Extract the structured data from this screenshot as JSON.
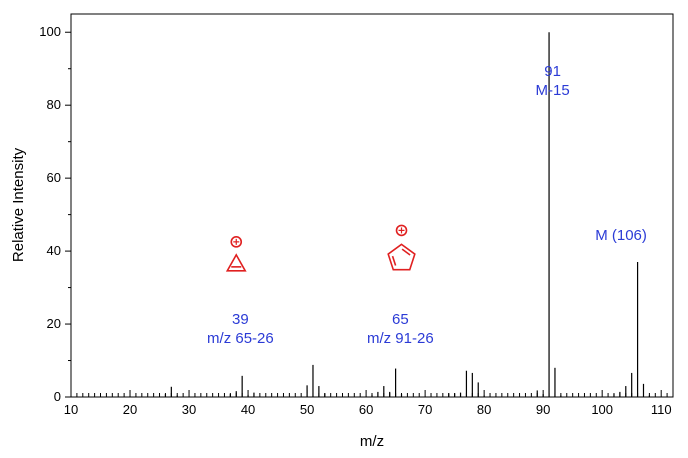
{
  "chart_data": {
    "type": "bar",
    "xlabel": "m/z",
    "ylabel": "Relative Intensity",
    "xlim": [
      10,
      112
    ],
    "ylim": [
      0,
      105
    ],
    "xticks": [
      10,
      20,
      30,
      40,
      50,
      60,
      70,
      80,
      90,
      100,
      110
    ],
    "yticks": [
      0,
      20,
      40,
      60,
      80,
      100
    ],
    "grid": false,
    "peaks": [
      {
        "x": 26,
        "y": 0.8
      },
      {
        "x": 27,
        "y": 2.8
      },
      {
        "x": 28,
        "y": 0.4
      },
      {
        "x": 37,
        "y": 0.8
      },
      {
        "x": 38,
        "y": 1.6
      },
      {
        "x": 39,
        "y": 5.8
      },
      {
        "x": 40,
        "y": 0.6
      },
      {
        "x": 41,
        "y": 1.2
      },
      {
        "x": 50,
        "y": 3.2
      },
      {
        "x": 51,
        "y": 8.8
      },
      {
        "x": 52,
        "y": 3.0
      },
      {
        "x": 53,
        "y": 1.0
      },
      {
        "x": 61,
        "y": 0.6
      },
      {
        "x": 62,
        "y": 1.4
      },
      {
        "x": 63,
        "y": 3.0
      },
      {
        "x": 64,
        "y": 1.4
      },
      {
        "x": 65,
        "y": 7.8
      },
      {
        "x": 66,
        "y": 0.8
      },
      {
        "x": 74,
        "y": 1.0
      },
      {
        "x": 75,
        "y": 1.0
      },
      {
        "x": 76,
        "y": 1.2
      },
      {
        "x": 77,
        "y": 7.2
      },
      {
        "x": 78,
        "y": 6.6
      },
      {
        "x": 79,
        "y": 4.0
      },
      {
        "x": 80,
        "y": 0.4
      },
      {
        "x": 89,
        "y": 1.8
      },
      {
        "x": 90,
        "y": 0.8
      },
      {
        "x": 91,
        "y": 100
      },
      {
        "x": 92,
        "y": 8.0
      },
      {
        "x": 93,
        "y": 0.4
      },
      {
        "x": 102,
        "y": 0.8
      },
      {
        "x": 103,
        "y": 1.4
      },
      {
        "x": 104,
        "y": 3.0
      },
      {
        "x": 105,
        "y": 6.6
      },
      {
        "x": 106,
        "y": 37.0
      },
      {
        "x": 107,
        "y": 3.6
      },
      {
        "x": 108,
        "y": 0.4
      }
    ],
    "annotations": [
      {
        "lines": [
          "91",
          "M-15"
        ],
        "x": 91.6,
        "y": 88,
        "color": "#2b3bd6"
      },
      {
        "lines": [
          "M (106)"
        ],
        "x": 103.2,
        "y": 43,
        "color": "#2b3bd6"
      },
      {
        "lines": [
          "39",
          "m/z 65-26"
        ],
        "x": 38.7,
        "y": 20,
        "color": "#2b3bd6"
      },
      {
        "lines": [
          "65",
          "m/z 91-26"
        ],
        "x": 65.8,
        "y": 20,
        "color": "#2b3bd6"
      }
    ],
    "structures": [
      {
        "kind": "cyclopropenyl-cation",
        "x": 38,
        "y": 36.5,
        "color": "#e02020"
      },
      {
        "kind": "cyclopentadienyl-cation",
        "x": 66,
        "y": 38,
        "color": "#e02020"
      }
    ]
  }
}
